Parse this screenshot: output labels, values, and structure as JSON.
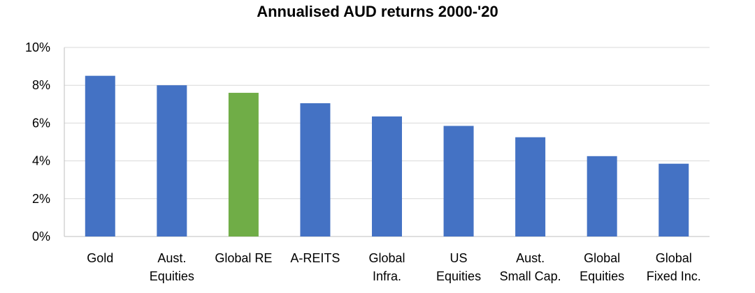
{
  "chart_data": {
    "type": "bar",
    "title": "Annualised AUD returns 2000-'20",
    "xlabel": "",
    "ylabel": "",
    "categories": [
      [
        "Gold"
      ],
      [
        "Aust.",
        "Equities"
      ],
      [
        "Global RE"
      ],
      [
        "A-REITS"
      ],
      [
        "Global",
        "Infra."
      ],
      [
        "US",
        "Equities"
      ],
      [
        "Aust.",
        "Small Cap."
      ],
      [
        "Global",
        "Equities"
      ],
      [
        "Global",
        "Fixed Inc."
      ]
    ],
    "values": [
      8.5,
      8.0,
      7.6,
      7.05,
      6.35,
      5.85,
      5.25,
      4.25,
      3.85
    ],
    "highlight_index": 2,
    "ylim": [
      0,
      10
    ],
    "yticks": [
      0,
      2,
      4,
      6,
      8,
      10
    ],
    "ytick_labels": [
      "0%",
      "2%",
      "4%",
      "6%",
      "8%",
      "10%"
    ],
    "grid": true,
    "legend": "none"
  },
  "colors": {
    "bar": "#4472C4",
    "highlight": "#70AD47",
    "grid": "#D9D9D9",
    "axis": "#BFBFBF",
    "text": "#000000"
  }
}
